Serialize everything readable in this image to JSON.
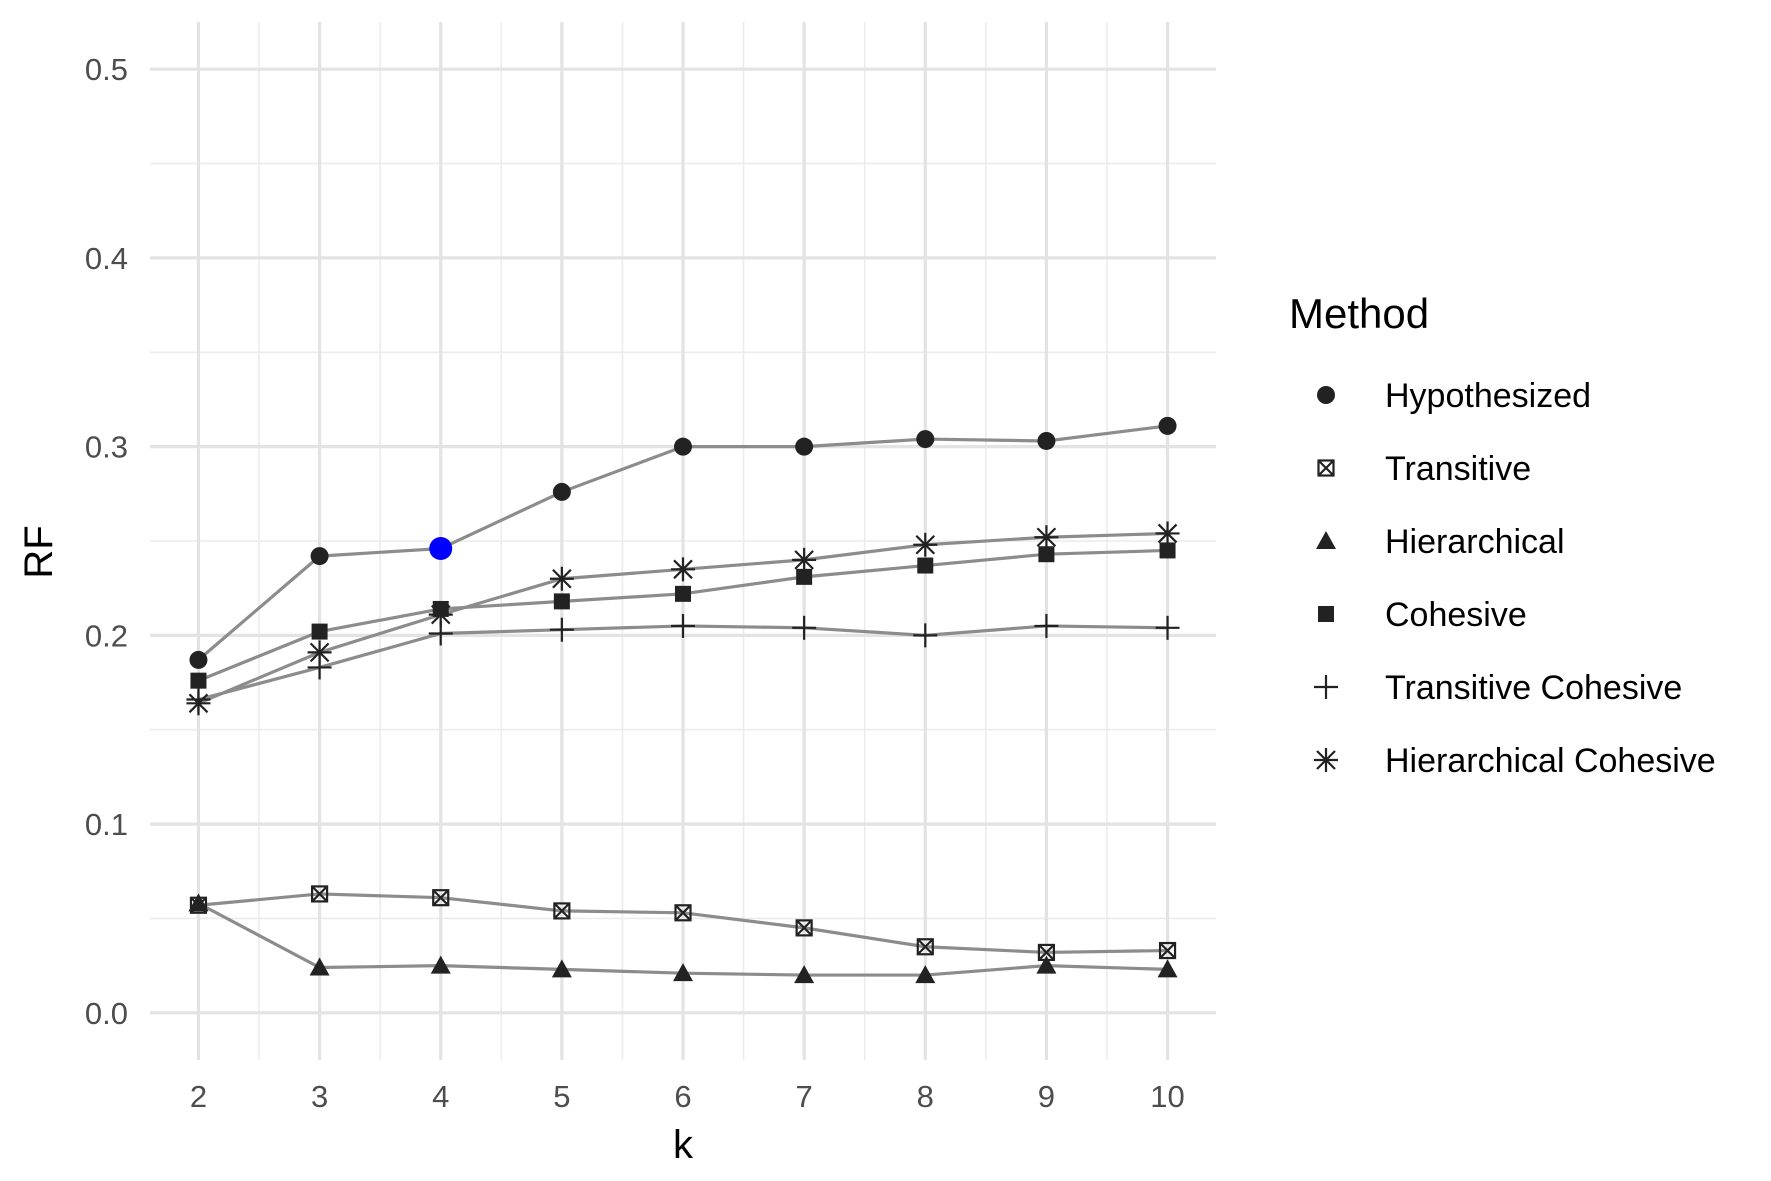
{
  "chart_data": {
    "type": "line",
    "title": "",
    "xlabel": "k",
    "ylabel": "RF",
    "x": [
      2,
      3,
      4,
      5,
      6,
      7,
      8,
      9,
      10
    ],
    "x_ticks": [
      "2",
      "3",
      "4",
      "5",
      "6",
      "7",
      "8",
      "9",
      "10"
    ],
    "y_ticks": [
      "0.0",
      "0.1",
      "0.2",
      "0.3",
      "0.4",
      "0.5"
    ],
    "xlim": [
      1.6,
      10.4
    ],
    "ylim": [
      -0.025,
      0.525
    ],
    "grid": true,
    "line_color": "#8c8c8c",
    "point_color": "#222222",
    "highlight_color": "#0000ff",
    "highlight": {
      "series": "Hypothesized",
      "x": 4,
      "y": 0.246
    },
    "legend": {
      "title": "Method",
      "placement": "right"
    },
    "series": [
      {
        "name": "Hypothesized",
        "shape": "circle",
        "values": [
          0.187,
          0.242,
          0.246,
          0.276,
          0.3,
          0.3,
          0.304,
          0.303,
          0.311
        ]
      },
      {
        "name": "Transitive",
        "shape": "crossed-square",
        "values": [
          0.057,
          0.063,
          0.061,
          0.054,
          0.053,
          0.045,
          0.035,
          0.032,
          0.033
        ]
      },
      {
        "name": "Hierarchical",
        "shape": "triangle",
        "values": [
          0.058,
          0.024,
          0.025,
          0.023,
          0.021,
          0.02,
          0.02,
          0.025,
          0.023
        ]
      },
      {
        "name": "Cohesive",
        "shape": "square",
        "values": [
          0.176,
          0.202,
          0.214,
          0.218,
          0.222,
          0.231,
          0.237,
          0.243,
          0.245
        ]
      },
      {
        "name": "Transitive Cohesive",
        "shape": "plus",
        "values": [
          0.166,
          0.183,
          0.201,
          0.203,
          0.205,
          0.204,
          0.2,
          0.205,
          0.204
        ]
      },
      {
        "name": "Hierarchical Cohesive",
        "shape": "asterisk",
        "values": [
          0.164,
          0.191,
          0.211,
          0.23,
          0.235,
          0.24,
          0.248,
          0.252,
          0.254
        ]
      }
    ]
  }
}
